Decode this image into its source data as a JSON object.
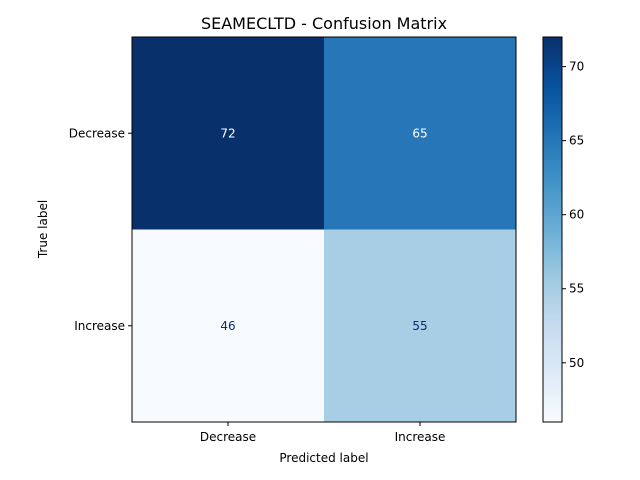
{
  "chart_data": {
    "type": "heatmap",
    "title": "SEAMECLTD - Confusion Matrix",
    "xlabel": "Predicted label",
    "ylabel": "True label",
    "x_categories": [
      "Decrease",
      "Increase"
    ],
    "y_categories": [
      "Decrease",
      "Increase"
    ],
    "matrix": [
      [
        72,
        65
      ],
      [
        46,
        55
      ]
    ],
    "cell_labels": [
      [
        "72",
        "65"
      ],
      [
        "46",
        "55"
      ]
    ],
    "colormap": "Blues",
    "colorbar": {
      "range": [
        46,
        72
      ],
      "ticks": [
        50,
        55,
        60,
        65,
        70
      ],
      "tick_labels": [
        "50",
        "55",
        "60",
        "65",
        "70"
      ]
    },
    "colors": {
      "cell_72": "#08306b",
      "cell_65": "#2171b5",
      "cell_55": "#a6cde2",
      "cell_46": "#f7fbff",
      "text_on_dark": "#ffffff",
      "text_on_light": "#08306b"
    }
  }
}
